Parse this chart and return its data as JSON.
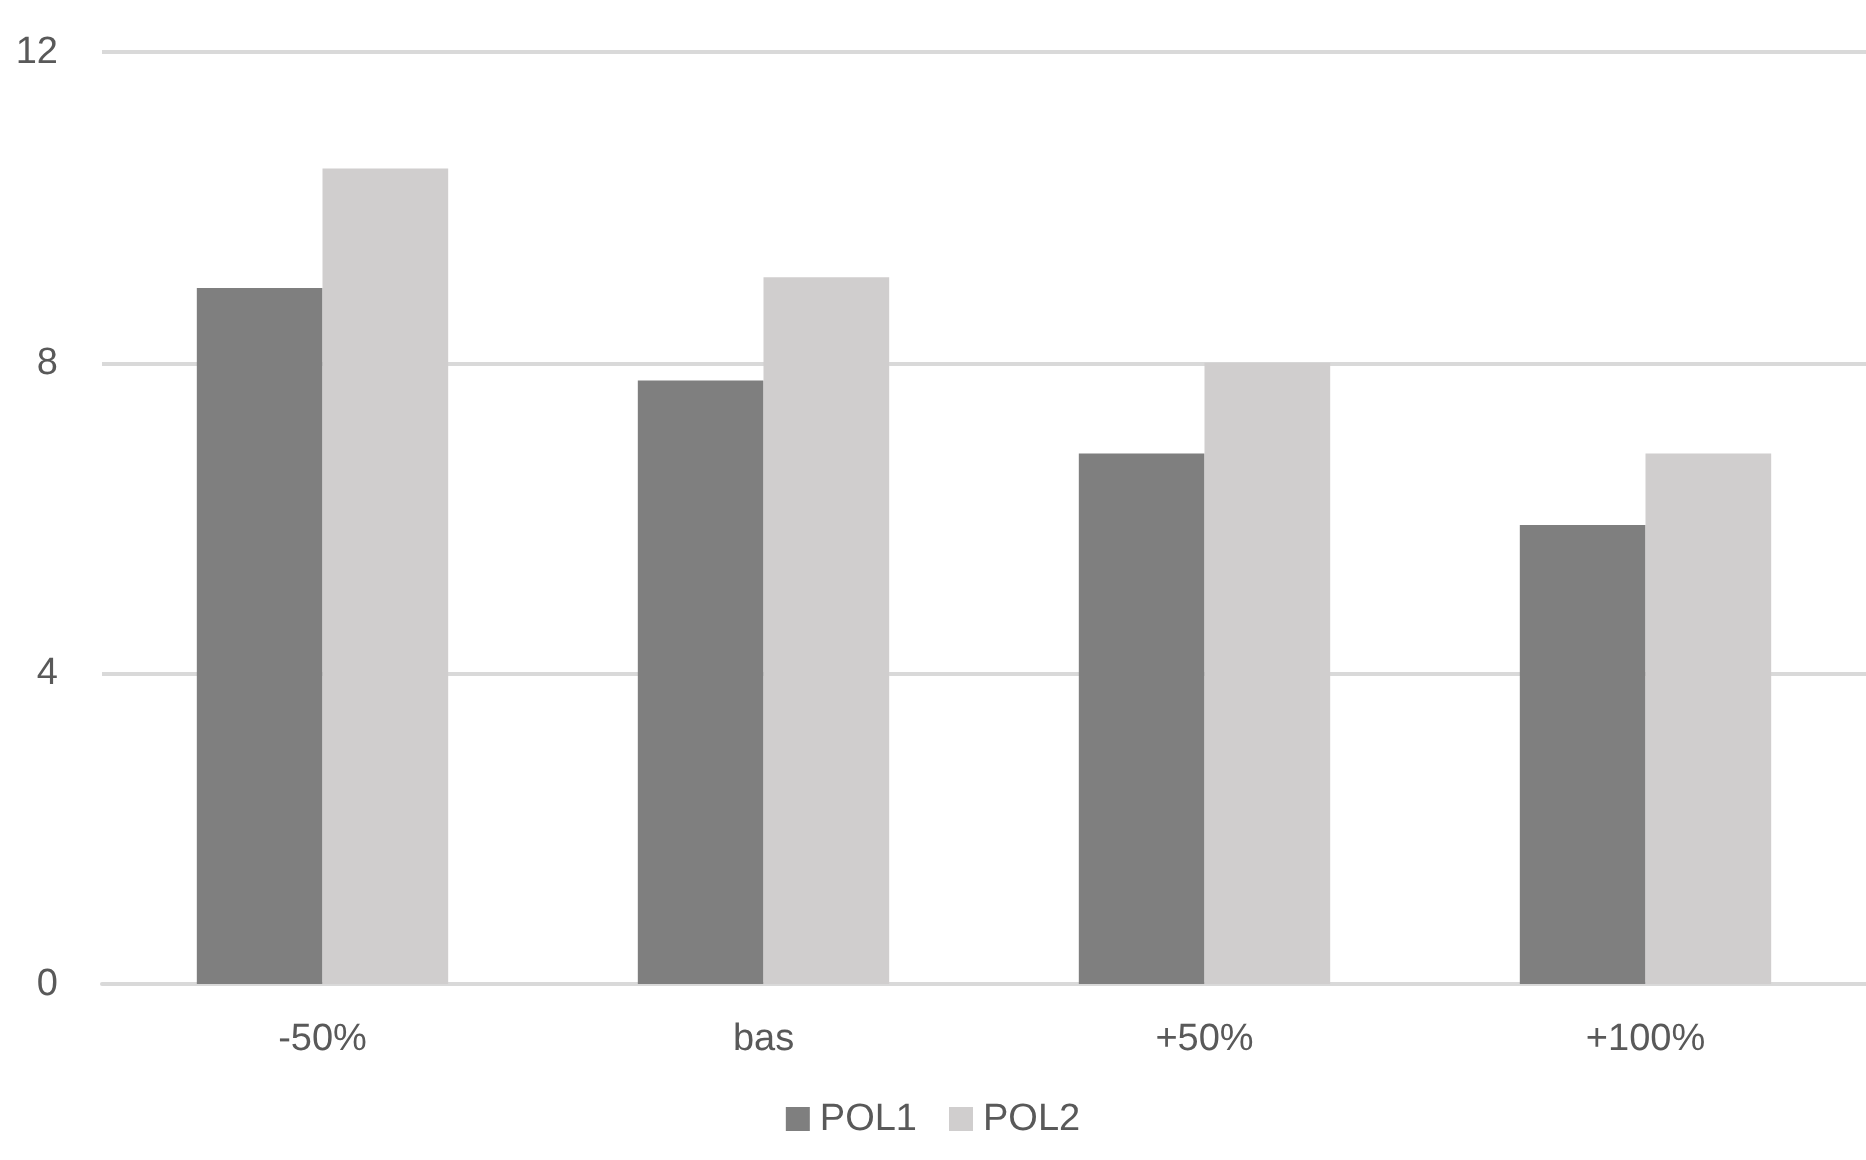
{
  "chart_data": {
    "type": "bar",
    "categories": [
      "-50%",
      "bas",
      "+50%",
      "+100%"
    ],
    "series": [
      {
        "name": "POL1",
        "color": "#7f7f7f",
        "values": [
          8.96,
          7.77,
          6.83,
          5.91
        ]
      },
      {
        "name": "POL2",
        "color": "#d0cece",
        "values": [
          10.5,
          9.1,
          8.0,
          6.83
        ]
      }
    ],
    "ylim": [
      0,
      12
    ],
    "yticks": [
      0,
      4,
      8,
      12
    ],
    "grid": "y",
    "legend": "bottom"
  }
}
